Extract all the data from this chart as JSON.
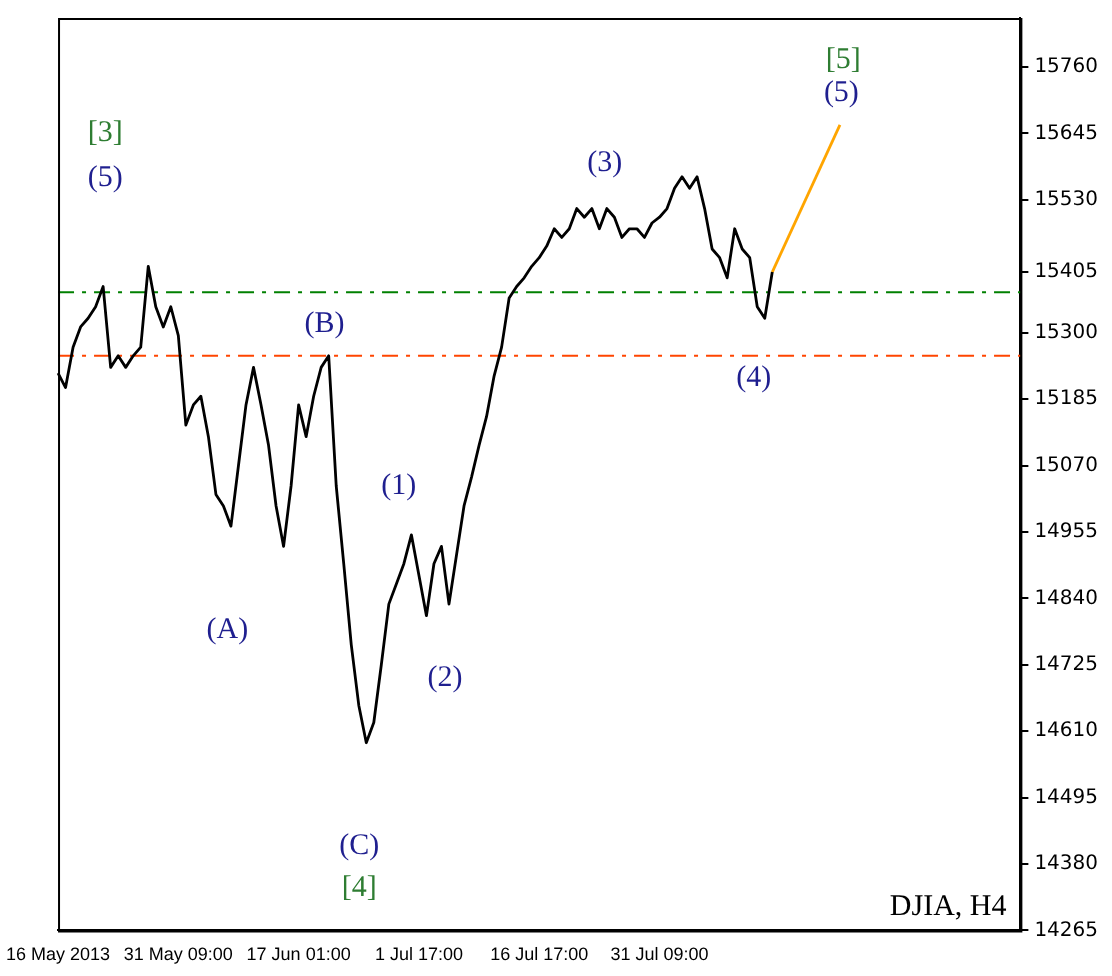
{
  "chart_data": {
    "type": "line",
    "categories": [
      "16 May 2013",
      null,
      null,
      null,
      null,
      null,
      null,
      null,
      null,
      null,
      null,
      null,
      null,
      null,
      null,
      null,
      "31 May 09:00",
      null,
      null,
      null,
      null,
      null,
      null,
      null,
      null,
      null,
      null,
      null,
      null,
      null,
      null,
      null,
      "17 Jun 01:00",
      null,
      null,
      null,
      null,
      null,
      null,
      null,
      null,
      null,
      null,
      null,
      null,
      null,
      null,
      null,
      "1 Jul 17:00",
      null,
      null,
      null,
      null,
      null,
      null,
      null,
      null,
      null,
      null,
      null,
      null,
      null,
      null,
      null,
      "16 Jul 17:00",
      null,
      null,
      null,
      null,
      null,
      null,
      null,
      null,
      null,
      null,
      null,
      null,
      null,
      null,
      null,
      "31 Jul 09:00",
      null,
      null,
      null,
      null,
      null,
      null,
      null,
      null,
      null,
      null,
      null,
      null,
      null,
      null,
      null,
      null,
      null,
      null,
      null,
      null,
      null,
      null,
      null,
      null,
      null,
      null,
      null,
      null,
      null,
      null,
      null,
      null,
      null,
      null,
      null,
      null,
      null,
      null,
      null,
      null,
      null,
      null,
      null,
      null,
      null,
      null,
      null,
      null
    ],
    "series": [
      {
        "color": "#000000",
        "values": [
          15230,
          15205,
          15275,
          15310,
          15325,
          15345,
          15380,
          15240,
          15260,
          15240,
          15260,
          15275,
          15415,
          15345,
          15310,
          15345,
          15295,
          15140,
          15175,
          15190,
          15120,
          15020,
          15000,
          14965,
          15070,
          15175,
          15240,
          15175,
          15105,
          15000,
          14930,
          15035,
          15175,
          15120,
          15190,
          15240,
          15260,
          15035,
          14900,
          14760,
          14655,
          14590,
          14625,
          14725,
          14830,
          14865,
          14900,
          14950,
          14880,
          14810,
          14900,
          14930,
          14830,
          14915,
          15000,
          15050,
          15105,
          15155,
          15225,
          15275,
          15360,
          15380,
          15395,
          15415,
          15430,
          15450,
          15480,
          15465,
          15480,
          15515,
          15500,
          15515,
          15480,
          15515,
          15500,
          15465,
          15480,
          15480,
          15465,
          15490,
          15500,
          15515,
          15550,
          15570,
          15550,
          15570,
          15515,
          15445,
          15430,
          15395,
          15480,
          15445,
          15430,
          15345,
          15325,
          15405,
          null,
          null,
          null,
          null,
          null,
          null,
          null,
          null,
          null,
          null,
          null,
          null,
          null,
          null,
          null,
          null,
          null,
          null,
          null,
          null,
          null,
          null,
          null,
          null,
          null,
          null,
          null,
          null,
          null,
          null,
          null,
          null,
          null
        ]
      },
      {
        "color": "#ffa500",
        "values": [
          null,
          null,
          null,
          null,
          null,
          null,
          null,
          null,
          null,
          null,
          null,
          null,
          null,
          null,
          null,
          null,
          null,
          null,
          null,
          null,
          null,
          null,
          null,
          null,
          null,
          null,
          null,
          null,
          null,
          null,
          null,
          null,
          null,
          null,
          null,
          null,
          null,
          null,
          null,
          null,
          null,
          null,
          null,
          null,
          null,
          null,
          null,
          null,
          null,
          null,
          null,
          null,
          null,
          null,
          null,
          null,
          null,
          null,
          null,
          null,
          null,
          null,
          null,
          null,
          null,
          null,
          null,
          null,
          null,
          null,
          null,
          null,
          null,
          null,
          null,
          null,
          null,
          null,
          null,
          null,
          null,
          null,
          null,
          null,
          null,
          null,
          null,
          null,
          null,
          null,
          null,
          null,
          null,
          null,
          null,
          15405,
          null,
          null,
          null,
          null,
          null,
          null,
          null,
          null,
          15660,
          null,
          null,
          null,
          null,
          null,
          null,
          null,
          null,
          null,
          null,
          null,
          null,
          null,
          null,
          null,
          null,
          null,
          null,
          null,
          null,
          null,
          null,
          null,
          null
        ]
      }
    ],
    "ylim": [
      14265,
      15845
    ],
    "yticks": [
      14265,
      14380,
      14495,
      14610,
      14725,
      14840,
      14955,
      15070,
      15185,
      15300,
      15405,
      15530,
      15645,
      15760
    ],
    "ref_lines": [
      {
        "axis": "y",
        "value": 15370,
        "color": "#008000",
        "line_style": "dashed"
      },
      {
        "axis": "y",
        "value": 15260,
        "color": "#ff4500",
        "line_style": "dashed"
      }
    ],
    "annotations": [
      "[3]",
      "(5)",
      "(B)",
      "(A)",
      "(1)",
      "(2)",
      "(C)",
      "[4]",
      "(3)",
      "(4)",
      "[5]",
      {
        "text": "(5)",
        "y": 15660
      },
      "DJIA, H4"
    ],
    "grid": false,
    "legend": false,
    "marker": "none",
    "line_style": "solid"
  }
}
